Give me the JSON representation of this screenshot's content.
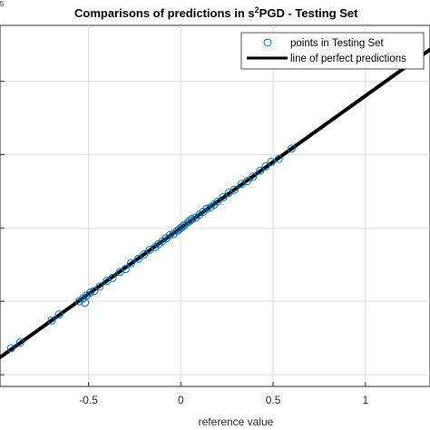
{
  "chart_data": {
    "type": "scatter",
    "title_main": "Comparisons of predictions in s",
    "title_sup": "2",
    "title_rest": "PGD - Testing Set",
    "exponent_label": "5",
    "xlabel": "reference value",
    "ylabel": "",
    "xlim": [
      -0.98,
      1.35
    ],
    "ylim": [
      -1.08,
      1.38
    ],
    "x_ticks": [
      -0.5,
      0,
      0.5,
      1
    ],
    "x_tick_labels": [
      "-0.5",
      "0",
      "0.5",
      "1"
    ],
    "y_ticks": [
      -1.0,
      -0.5,
      0.0,
      0.5,
      1.0
    ],
    "grid": true,
    "legend_position": "top-right",
    "series": [
      {
        "name": "points in Testing Set",
        "marker": "circle-open",
        "color": "#0072BD",
        "points": [
          [
            -0.92,
            -0.82
          ],
          [
            -0.87,
            -0.78
          ],
          [
            -0.7,
            -0.63
          ],
          [
            -0.66,
            -0.59
          ],
          [
            -0.55,
            -0.5
          ],
          [
            -0.53,
            -0.48
          ],
          [
            -0.52,
            -0.51
          ],
          [
            -0.51,
            -0.46
          ],
          [
            -0.49,
            -0.44
          ],
          [
            -0.47,
            -0.43
          ],
          [
            -0.44,
            -0.4
          ],
          [
            -0.4,
            -0.36
          ],
          [
            -0.37,
            -0.34
          ],
          [
            -0.33,
            -0.3
          ],
          [
            -0.3,
            -0.28
          ],
          [
            -0.27,
            -0.24
          ],
          [
            -0.23,
            -0.21
          ],
          [
            -0.2,
            -0.18
          ],
          [
            -0.17,
            -0.15
          ],
          [
            -0.14,
            -0.13
          ],
          [
            -0.12,
            -0.11
          ],
          [
            -0.1,
            -0.09
          ],
          [
            -0.08,
            -0.07
          ],
          [
            -0.06,
            -0.05
          ],
          [
            -0.04,
            -0.04
          ],
          [
            -0.02,
            -0.02
          ],
          [
            -0.01,
            -0.01
          ],
          [
            0.0,
            0.0
          ],
          [
            0.01,
            0.01
          ],
          [
            0.02,
            0.02
          ],
          [
            0.04,
            0.04
          ],
          [
            0.05,
            0.05
          ],
          [
            0.06,
            0.06
          ],
          [
            0.08,
            0.07
          ],
          [
            0.1,
            0.09
          ],
          [
            0.12,
            0.11
          ],
          [
            0.14,
            0.13
          ],
          [
            0.16,
            0.14
          ],
          [
            0.18,
            0.16
          ],
          [
            0.2,
            0.18
          ],
          [
            0.23,
            0.21
          ],
          [
            0.26,
            0.24
          ],
          [
            0.29,
            0.26
          ],
          [
            0.33,
            0.3
          ],
          [
            0.36,
            0.32
          ],
          [
            0.39,
            0.35
          ],
          [
            0.43,
            0.39
          ],
          [
            0.46,
            0.42
          ],
          [
            0.49,
            0.45
          ],
          [
            0.53,
            0.47
          ],
          [
            0.6,
            0.54
          ],
          [
            1.27,
            1.13
          ]
        ]
      },
      {
        "name": "line of perfect predictions",
        "color": "#000000",
        "x": [
          -1.0,
          1.4
        ],
        "y": [
          -0.9,
          1.26
        ]
      }
    ]
  }
}
